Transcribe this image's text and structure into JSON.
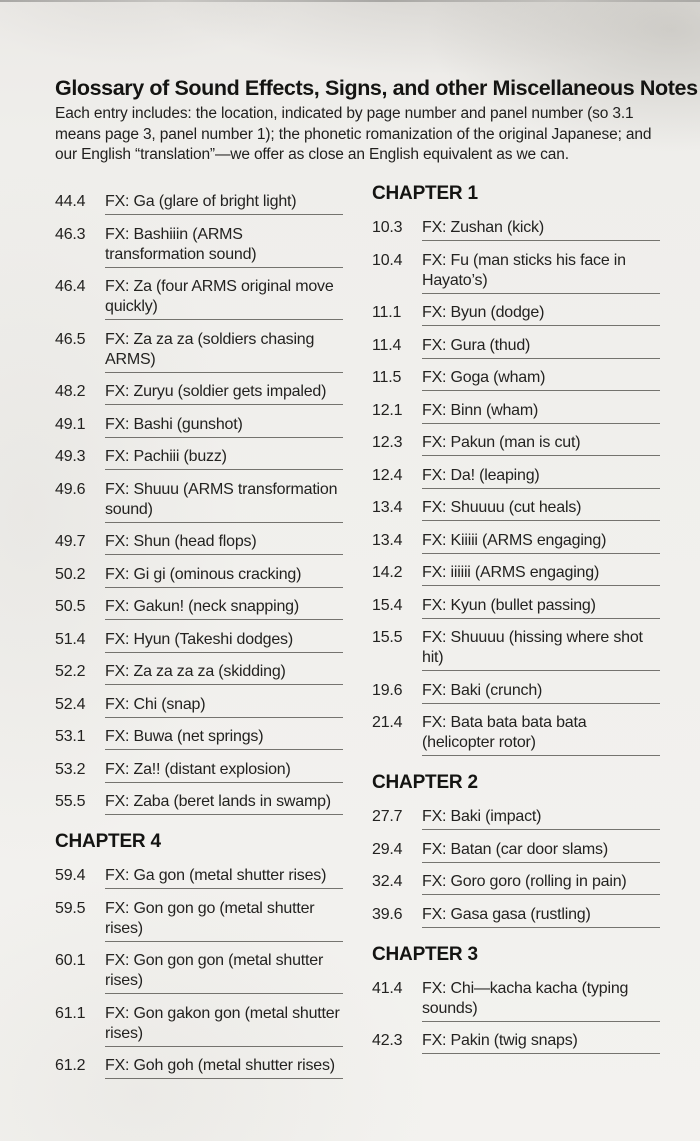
{
  "header": {
    "title": "Glossary of Sound Effects, Signs, and other Miscellaneous Notes",
    "intro": "Each entry includes: the location, indicated by page number and panel number (so 3.1 means page 3, panel number 1); the phonetic romanization of the original Japanese; and our English “translation”—we offer as close an English equivalent as we can."
  },
  "left_column": {
    "sections": [
      {
        "header": null,
        "entries": [
          {
            "loc": "44.4",
            "fx": "FX: Ga (glare of bright light)"
          },
          {
            "loc": "46.3",
            "fx": "FX: Bashiiin (ARMS transformation sound)"
          },
          {
            "loc": "46.4",
            "fx": "FX: Za (four ARMS original move quickly)"
          },
          {
            "loc": "46.5",
            "fx": "FX: Za za za (soldiers chasing ARMS)"
          },
          {
            "loc": "48.2",
            "fx": "FX: Zuryu (soldier gets impaled)"
          },
          {
            "loc": "49.1",
            "fx": "FX: Bashi (gunshot)"
          },
          {
            "loc": "49.3",
            "fx": "FX: Pachiii (buzz)"
          },
          {
            "loc": "49.6",
            "fx": "FX: Shuuu (ARMS transformation sound)"
          },
          {
            "loc": "49.7",
            "fx": "FX: Shun (head flops)"
          },
          {
            "loc": "50.2",
            "fx": "FX: Gi gi (ominous cracking)"
          },
          {
            "loc": "50.5",
            "fx": "FX: Gakun! (neck snapping)"
          },
          {
            "loc": "51.4",
            "fx": "FX: Hyun (Takeshi dodges)"
          },
          {
            "loc": "52.2",
            "fx": "FX: Za za za za (skidding)"
          },
          {
            "loc": "52.4",
            "fx": "FX: Chi (snap)"
          },
          {
            "loc": "53.1",
            "fx": "FX: Buwa (net springs)"
          },
          {
            "loc": "53.2",
            "fx": "FX: Za!! (distant explosion)"
          },
          {
            "loc": "55.5",
            "fx": "FX: Zaba (beret lands in swamp)"
          }
        ]
      },
      {
        "header": "CHAPTER 4",
        "entries": [
          {
            "loc": "59.4",
            "fx": "FX: Ga gon (metal shutter rises)"
          },
          {
            "loc": "59.5",
            "fx": "FX: Gon gon go (metal shutter rises)"
          },
          {
            "loc": "60.1",
            "fx": "FX: Gon gon gon (metal shutter rises)"
          },
          {
            "loc": "61.1",
            "fx": "FX: Gon gakon gon (metal shutter rises)"
          },
          {
            "loc": "61.2",
            "fx": "FX: Goh goh (metal shutter rises)"
          }
        ]
      }
    ]
  },
  "right_column": {
    "sections": [
      {
        "header": "CHAPTER 1",
        "entries": [
          {
            "loc": "10.3",
            "fx": "FX: Zushan (kick)"
          },
          {
            "loc": "10.4",
            "fx": "FX: Fu (man sticks his face in Hayato’s)"
          },
          {
            "loc": "11.1",
            "fx": "FX: Byun (dodge)"
          },
          {
            "loc": "11.4",
            "fx": "FX: Gura (thud)"
          },
          {
            "loc": "11.5",
            "fx": "FX: Goga (wham)"
          },
          {
            "loc": "12.1",
            "fx": "FX: Binn (wham)"
          },
          {
            "loc": "12.3",
            "fx": "FX: Pakun (man is cut)"
          },
          {
            "loc": "12.4",
            "fx": "FX: Da! (leaping)"
          },
          {
            "loc": "13.4",
            "fx": "FX: Shuuuu (cut heals)"
          },
          {
            "loc": "13.4",
            "fx": "FX: Kiiiii (ARMS engaging)"
          },
          {
            "loc": "14.2",
            "fx": "FX: iiiiii (ARMS engaging)"
          },
          {
            "loc": "15.4",
            "fx": "FX: Kyun (bullet passing)"
          },
          {
            "loc": "15.5",
            "fx": "FX: Shuuuu (hissing where shot hit)"
          },
          {
            "loc": "19.6",
            "fx": "FX: Baki (crunch)"
          },
          {
            "loc": "21.4",
            "fx": "FX: Bata bata bata bata (helicopter rotor)"
          }
        ]
      },
      {
        "header": "CHAPTER 2",
        "entries": [
          {
            "loc": "27.7",
            "fx": "FX: Baki (impact)"
          },
          {
            "loc": "29.4",
            "fx": "FX: Batan (car door slams)"
          },
          {
            "loc": "32.4",
            "fx": "FX: Goro goro (rolling in pain)"
          },
          {
            "loc": "39.6",
            "fx": "FX: Gasa gasa (rustling)"
          }
        ]
      },
      {
        "header": "CHAPTER 3",
        "entries": [
          {
            "loc": "41.4",
            "fx": "FX: Chi—kacha kacha (typing sounds)"
          },
          {
            "loc": "42.3",
            "fx": "FX: Pakin (twig snaps)"
          }
        ]
      }
    ]
  }
}
